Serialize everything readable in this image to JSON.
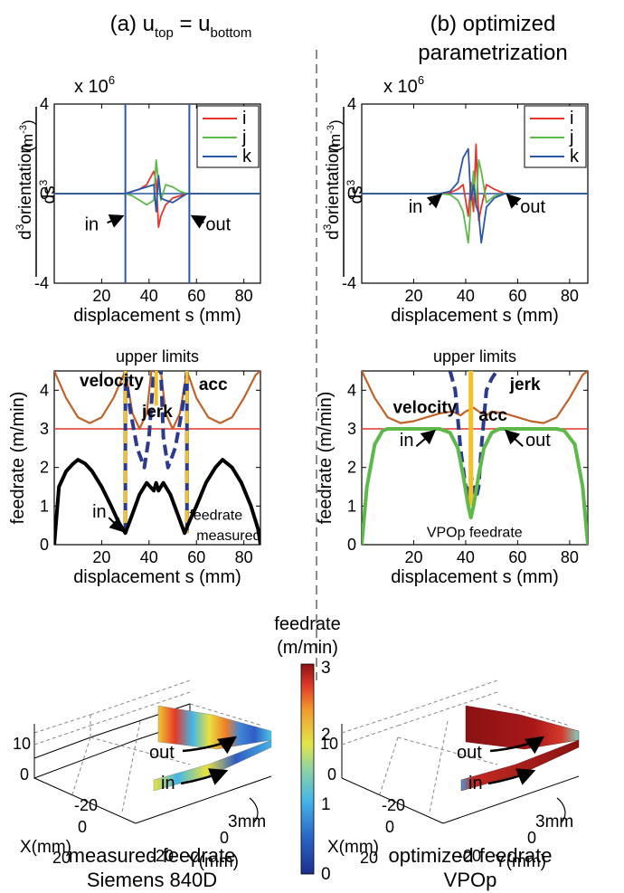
{
  "titles": {
    "left_prefix": "(a) u",
    "left_sub1": "top",
    "left_eq": " = u",
    "left_sub2": "bottom",
    "right_line1": "(b) optimized",
    "right_line2": "parametrization"
  },
  "top_charts": {
    "multiplier_base": "x 10",
    "multiplier_exp": "6",
    "ylabel_num": "orientation",
    "ylabel_num_exp": "3",
    "ylabel_num_prefix": "d",
    "ylabel_den": "ds",
    "ylabel_den_exp": "3",
    "ylabel_unit": "(m",
    "ylabel_unit_exp": "-3",
    "ylabel_unit_close": ")",
    "xlabel": "displacement s (mm)",
    "legend": [
      "i",
      "j",
      "k"
    ],
    "legend_colors": [
      "#e8342c",
      "#5cb94a",
      "#2c56a6"
    ],
    "in_label": "in",
    "out_label": "out"
  },
  "mid_charts": {
    "ylabel": "feedrate (m/min)",
    "xlabel": "displacement s (mm)",
    "upper_limits": "upper limits",
    "velocity": "velocity",
    "jerk": "jerk",
    "acc": "acc",
    "in_label": "in",
    "out_label": "out",
    "measured_label_1": "feedrate",
    "measured_label_2": "measured",
    "vpop_label": "VPOp feedrate"
  },
  "bottom": {
    "colorbar_title_1": "feedrate",
    "colorbar_title_2": "(m/min)",
    "colorbar_ticks": [
      "0",
      "1",
      "2",
      "3"
    ],
    "z_ticks": [
      "10",
      "0"
    ],
    "x_ticks": [
      "-20",
      "0",
      "20"
    ],
    "y_ticks": [
      "-20",
      "0"
    ],
    "xlabel": "X(mm)",
    "ylabel": "Y(mm)",
    "out_label": "out",
    "in_label": "in",
    "gap_label": "3mm",
    "caption_left_1": "measured feedrate",
    "caption_left_2": "Siemens 840D",
    "caption_right_1": "optimized feedrate",
    "caption_right_2": "VPOp"
  },
  "colors": {
    "red": "#e8342c",
    "green": "#5cb94a",
    "blue": "#2c56a6",
    "velocity": "#c0622a",
    "jerk": "#2b3a8f",
    "acc": "#f6c125",
    "limit_red": "#e8342c",
    "measured": "#000000",
    "vpop": "#5cb94a"
  },
  "chart_data": [
    {
      "type": "line",
      "panel": "a-top",
      "xlim": [
        0,
        87
      ],
      "ylim": [
        -4,
        4
      ],
      "x_ticks": [
        20,
        40,
        60,
        80
      ],
      "y_ticks": [
        -4,
        0,
        4
      ],
      "in_x": 30,
      "out_x": 57,
      "series": [
        {
          "name": "i",
          "x": [
            0,
            30,
            33,
            36,
            39,
            42,
            43,
            44,
            45,
            47,
            50,
            53,
            56,
            57,
            87
          ],
          "y": [
            0,
            0,
            0.1,
            0.2,
            0.4,
            1.0,
            0.6,
            -1.5,
            -1.0,
            -0.5,
            -0.2,
            -0.1,
            0,
            0,
            0
          ]
        },
        {
          "name": "j",
          "x": [
            0,
            30,
            33,
            36,
            39,
            42,
            43,
            44,
            45,
            47,
            50,
            53,
            56,
            57,
            87
          ],
          "y": [
            0,
            0,
            -0.1,
            -0.3,
            -0.5,
            -0.3,
            1.5,
            0.5,
            -0.3,
            0.4,
            0.3,
            0.1,
            0,
            0,
            0
          ]
        },
        {
          "name": "k",
          "x": [
            0,
            30,
            33,
            36,
            39,
            42,
            43,
            44,
            45,
            47,
            50,
            53,
            56,
            57,
            87
          ],
          "y": [
            0,
            0,
            0.1,
            0.2,
            0.3,
            0.4,
            -0.8,
            0.8,
            -0.2,
            -0.3,
            -0.4,
            -0.2,
            0,
            0,
            0
          ]
        }
      ]
    },
    {
      "type": "line",
      "panel": "b-top",
      "xlim": [
        0,
        87
      ],
      "ylim": [
        -4,
        4
      ],
      "x_ticks": [
        20,
        40,
        60,
        80
      ],
      "y_ticks": [
        -4,
        0,
        4
      ],
      "in_x": 30,
      "out_x": 55,
      "series": [
        {
          "name": "i",
          "x": [
            0,
            30,
            34,
            37,
            39,
            41,
            42,
            43,
            44,
            45,
            46,
            48,
            51,
            55,
            87
          ],
          "y": [
            0,
            0,
            0.05,
            0.2,
            0.4,
            -1.0,
            0.5,
            -0.8,
            2.2,
            -1.2,
            -0.6,
            0.4,
            0.2,
            0,
            0
          ]
        },
        {
          "name": "j",
          "x": [
            0,
            30,
            34,
            37,
            39,
            41,
            42,
            43,
            44,
            45,
            46,
            48,
            51,
            55,
            87
          ],
          "y": [
            0,
            0,
            -0.05,
            -0.3,
            -0.8,
            -2.2,
            -0.5,
            1.0,
            -0.6,
            1.5,
            1.0,
            -0.4,
            -0.1,
            0,
            0
          ]
        },
        {
          "name": "k",
          "x": [
            0,
            30,
            34,
            37,
            39,
            41,
            42,
            43,
            44,
            45,
            46,
            48,
            51,
            55,
            87
          ],
          "y": [
            0,
            0,
            0.1,
            0.5,
            1.6,
            2.0,
            -0.3,
            0.4,
            -0.5,
            -0.9,
            -2.2,
            -0.6,
            -0.2,
            0,
            0
          ]
        }
      ]
    },
    {
      "type": "line",
      "panel": "a-mid",
      "xlim": [
        0,
        87
      ],
      "ylim": [
        0,
        4.5
      ],
      "x_ticks": [
        20,
        40,
        60,
        80
      ],
      "y_ticks": [
        0,
        1,
        2,
        3,
        4
      ],
      "limit_line": 3,
      "series": [
        {
          "name": "velocity",
          "x": [
            0,
            5,
            10,
            15,
            20,
            25,
            30,
            33,
            36,
            39,
            41,
            43,
            45,
            47,
            50,
            53,
            56,
            60,
            65,
            70,
            75,
            80,
            85,
            87
          ],
          "y": [
            4.5,
            3.8,
            3.3,
            3.15,
            3.3,
            3.8,
            4.5,
            3.4,
            3.0,
            3.4,
            4.5,
            4.5,
            4.5,
            3.4,
            3.0,
            3.4,
            4.5,
            3.8,
            3.3,
            3.15,
            3.3,
            3.8,
            4.4,
            4.5
          ]
        },
        {
          "name": "jerk",
          "x": [
            30,
            32,
            35,
            38,
            40,
            42,
            43,
            44,
            45,
            46,
            48,
            51,
            54,
            56
          ],
          "y": [
            4.5,
            3.5,
            2.5,
            2.0,
            2.8,
            4.5,
            4.5,
            4.5,
            4.5,
            2.8,
            2.0,
            2.5,
            3.5,
            4.5
          ]
        },
        {
          "name": "feedrate measured",
          "x": [
            0,
            2,
            5,
            8,
            10,
            13,
            16,
            20,
            24,
            27,
            30,
            33,
            36,
            39,
            42,
            43,
            44,
            46,
            49,
            52,
            55,
            57,
            60,
            64,
            68,
            71,
            75,
            79,
            83,
            86,
            87
          ],
          "y": [
            0,
            1.5,
            1.9,
            2.1,
            2.2,
            2.1,
            1.9,
            1.5,
            1.0,
            0.6,
            0.3,
            0.8,
            1.3,
            1.6,
            1.4,
            1.6,
            1.4,
            1.6,
            1.3,
            0.8,
            0.3,
            0.6,
            1.0,
            1.6,
            2.0,
            2.2,
            2.0,
            1.6,
            1.0,
            0.4,
            0
          ]
        }
      ]
    },
    {
      "type": "line",
      "panel": "b-mid",
      "xlim": [
        0,
        87
      ],
      "ylim": [
        0,
        4.5
      ],
      "x_ticks": [
        20,
        40,
        60,
        80
      ],
      "y_ticks": [
        0,
        1,
        2,
        3,
        4
      ],
      "limit_line": 3,
      "series": [
        {
          "name": "velocity",
          "x": [
            0,
            5,
            10,
            15,
            20,
            25,
            30,
            35,
            38,
            40,
            43,
            45,
            48,
            50,
            55,
            60,
            65,
            70,
            75,
            80,
            85,
            87
          ],
          "y": [
            4.5,
            3.8,
            3.3,
            3.15,
            3.2,
            3.3,
            3.4,
            3.45,
            3.35,
            3.45,
            3.55,
            3.45,
            3.35,
            3.45,
            3.4,
            3.3,
            3.2,
            3.15,
            3.3,
            3.8,
            4.4,
            4.5
          ]
        },
        {
          "name": "jerk",
          "x": [
            34,
            36,
            38,
            40,
            41,
            42,
            43,
            44,
            45,
            46,
            48,
            50,
            52
          ],
          "y": [
            4.5,
            4.0,
            2.5,
            1.5,
            1.2,
            1.8,
            1.5,
            1.2,
            1.5,
            2.5,
            4.0,
            4.3,
            4.5
          ]
        },
        {
          "name": "VPOp feedrate",
          "x": [
            0,
            2,
            5,
            8,
            10,
            20,
            30,
            34,
            37,
            39,
            41,
            42,
            43,
            45,
            47,
            50,
            53,
            56,
            65,
            75,
            78,
            82,
            85,
            87
          ],
          "y": [
            0,
            1.5,
            2.6,
            2.95,
            3.0,
            3.0,
            3.0,
            2.9,
            2.5,
            1.8,
            1.0,
            0.7,
            1.0,
            1.8,
            2.5,
            2.9,
            3.0,
            3.0,
            3.0,
            3.0,
            2.95,
            2.6,
            1.5,
            0
          ]
        }
      ]
    }
  ]
}
